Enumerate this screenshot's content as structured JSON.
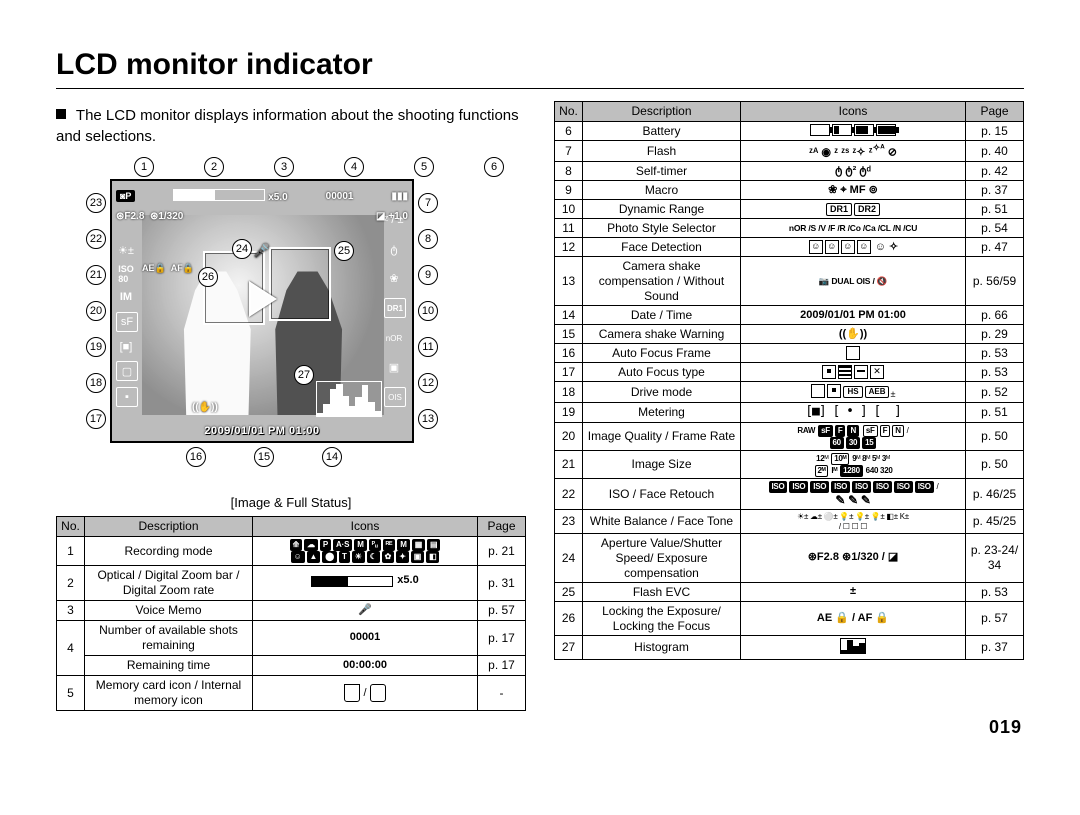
{
  "page_number": "019",
  "title": "LCD monitor indicator",
  "intro": "The LCD monitor displays information about the shooting functions and selections.",
  "figure": {
    "top_callouts": [
      "1",
      "2",
      "3",
      "4",
      "5",
      "6"
    ],
    "left_callouts": [
      "23",
      "22",
      "21",
      "20",
      "19",
      "18",
      "17"
    ],
    "right_callouts": [
      "7",
      "8",
      "9",
      "10",
      "11",
      "12",
      "13"
    ],
    "bottom_callouts": [
      "16",
      "15",
      "14"
    ],
    "inner_callouts": {
      "24": "24",
      "25": "25",
      "26": "26",
      "27": "27"
    },
    "overlay": {
      "aperture": "F2.8",
      "shutter": "1/320",
      "ev": "+1.0",
      "shots": "00001",
      "zoom_rate": "x5.0",
      "date": "2009/01/01 PM 01:00",
      "ae_lock": "AE",
      "af_lock": "AF",
      "pss": "nOR"
    },
    "caption": "[Image & Full Status]"
  },
  "table_left": {
    "headers": [
      "No.",
      "Description",
      "Icons",
      "Page"
    ],
    "rows": [
      {
        "no": "1",
        "desc": "Recording mode",
        "icons": "—",
        "page": "p. 21",
        "icons_type": "modegrid"
      },
      {
        "no": "2",
        "desc": "Optical / Digital Zoom bar / Digital Zoom rate",
        "icons": "x5.0",
        "page": "p. 31",
        "icons_type": "zoom"
      },
      {
        "no": "3",
        "desc": "Voice Memo",
        "icons": "🎤",
        "page": "p. 57",
        "icons_type": "glyph"
      },
      {
        "no": "4",
        "desc": "Number of available shots remaining",
        "icons": "00001",
        "page": "p. 17",
        "icons_type": "bold"
      },
      {
        "no": "4b",
        "desc": "Remaining time",
        "icons": "00:00:00",
        "page": "p. 17",
        "icons_type": "bold",
        "sub": true
      },
      {
        "no": "5",
        "desc": "Memory card icon / Internal memory icon",
        "icons": "",
        "page": "-",
        "icons_type": "card"
      }
    ]
  },
  "table_right": {
    "headers": [
      "No.",
      "Description",
      "Icons",
      "Page"
    ],
    "rows": [
      {
        "no": "6",
        "desc": "Battery",
        "page": "p. 15",
        "icons_type": "battery"
      },
      {
        "no": "7",
        "desc": "Flash",
        "icons": "ᶳᴬ ◉ ᶻ ᶻˢ ᶻᴾ ᶻᴬ ⊘",
        "page": "p. 40",
        "icons_type": "flash"
      },
      {
        "no": "8",
        "desc": "Self-timer",
        "icons": "ტ ტ² ტᵈ",
        "page": "p. 42",
        "icons_type": "glyph"
      },
      {
        "no": "9",
        "desc": "Macro",
        "icons": "❀ ⌖ MF ⊙",
        "page": "p. 37",
        "icons_type": "macro"
      },
      {
        "no": "10",
        "desc": "Dynamic Range",
        "icons": "DR1 DR2",
        "page": "p. 51",
        "icons_type": "dr"
      },
      {
        "no": "11",
        "desc": "Photo Style Selector",
        "icons": "nOR /S /V /F /R /Co /Ca /CL /N /CU",
        "page": "p. 54",
        "icons_type": "mini"
      },
      {
        "no": "12",
        "desc": "Face Detection",
        "icons": "▣ ▣ ▣ ▣ ☺ ✧",
        "page": "p. 47",
        "icons_type": "face"
      },
      {
        "no": "13",
        "desc": "Camera shake compensation / Without Sound",
        "icons": "📷 DUAL OIS / 🔇",
        "page": "p. 56/59",
        "icons_type": "mini"
      },
      {
        "no": "14",
        "desc": "Date / Time",
        "icons": "2009/01/01 PM 01:00",
        "page": "p. 66",
        "icons_type": "bold-sm"
      },
      {
        "no": "15",
        "desc": "Camera shake Warning",
        "icons": "((✋))",
        "page": "p. 29",
        "icons_type": "glyph"
      },
      {
        "no": "16",
        "desc": "Auto Focus Frame",
        "icons": "□",
        "page": "p. 53",
        "icons_type": "sq"
      },
      {
        "no": "17",
        "desc": "Auto Focus type",
        "icons": "▪ ▦ ▣ ▣",
        "page": "p. 53",
        "icons_type": "aftype"
      },
      {
        "no": "18",
        "desc": "Drive mode",
        "icons": "▢ ▣ ▣ AEB±",
        "page": "p. 52",
        "icons_type": "drive"
      },
      {
        "no": "19",
        "desc": "Metering",
        "icons": "[■] [•] [ ]",
        "page": "p. 51",
        "icons_type": "brkt"
      },
      {
        "no": "20",
        "desc": "Image Quality / Frame Rate",
        "icons": "RAW sF F N sF F N / 60 30 15",
        "page": "p. 50",
        "icons_type": "quality"
      },
      {
        "no": "21",
        "desc": "Image Size",
        "icons": "12M 10M 9M 8M 5M 3M 2M 1M 1280 640 320",
        "page": "p. 50",
        "icons_type": "size"
      },
      {
        "no": "22",
        "desc": "ISO / Face Retouch",
        "icons": "ISO 80 100 200 400 800 1600 3200 / ✎ ✎ ✎",
        "page": "p. 46/25",
        "icons_type": "iso"
      },
      {
        "no": "23",
        "desc": "White Balance / Face Tone",
        "icons": "☀ ☁ ⚙ 💡 💡 💡 💡 K± / ☐ ☐ ☐",
        "page": "p. 45/25",
        "icons_type": "wb"
      },
      {
        "no": "24",
        "desc": "Aperture Value/Shutter Speed/ Exposure compensation",
        "icons": "⊛F2.8 ⊛1/320 / ◪",
        "page": "p. 23-24/ 34",
        "icons_type": "bold-sm"
      },
      {
        "no": "25",
        "desc": "Flash EVC",
        "icons": "±",
        "page": "p. 53",
        "icons_type": "glyph"
      },
      {
        "no": "26",
        "desc": "Locking the Exposure/ Locking the Focus",
        "icons": "AE 🔒 / AF 🔒",
        "page": "p. 57",
        "icons_type": "bold"
      },
      {
        "no": "27",
        "desc": "Histogram",
        "icons": "▟",
        "page": "p. 37",
        "icons_type": "histo"
      }
    ]
  }
}
